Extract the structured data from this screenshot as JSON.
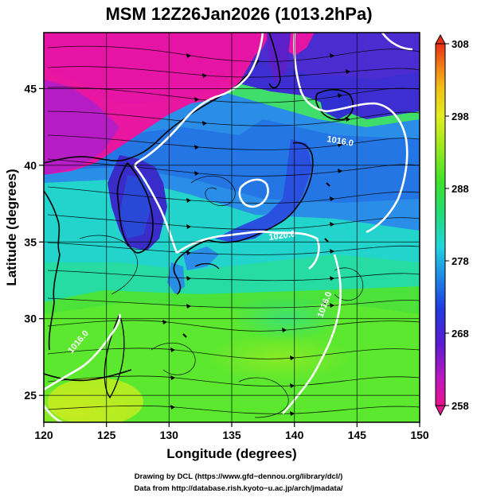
{
  "title": "MSM 12Z26Jan2026 (1013.2hPa)",
  "axes": {
    "xlabel": "Longitude (degrees)",
    "ylabel": "Latitude (degrees)",
    "xlim": [
      120,
      150
    ],
    "ylim": [
      22.6,
      48
    ],
    "xticks": [
      "120",
      "125",
      "130",
      "135",
      "140",
      "145",
      "150"
    ],
    "yticks": [
      "25",
      "30",
      "35",
      "40",
      "45"
    ]
  },
  "colorbar": {
    "range": [
      258,
      308
    ],
    "ticks": [
      "308",
      "298",
      "288",
      "278",
      "268",
      "258"
    ],
    "colors": [
      "#e8128c",
      "#b818c0",
      "#5a1cd0",
      "#1f3ce0",
      "#1e8ce6",
      "#22d4dc",
      "#22dc78",
      "#3fe12a",
      "#a0e81e",
      "#e2ec20",
      "#f0c018",
      "#f07a18",
      "#e83018"
    ]
  },
  "contours": [
    {
      "label": "1016.0"
    },
    {
      "label": "1020.0"
    },
    {
      "label": "1016.0"
    },
    {
      "label": "1016.0"
    }
  ],
  "credits": {
    "line1": "Drawing by DCL (https://www.gfd−dennou.org/library/dcl/)",
    "line2": "Data from http://database.rish.kyoto−u.ac.jp/arch/jmadata/"
  }
}
